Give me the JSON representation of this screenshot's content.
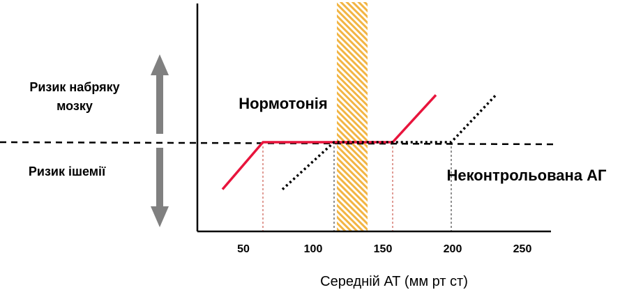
{
  "chart_data": {
    "type": "line",
    "xlabel": "Середній АТ (мм рт ст)",
    "xticks": [
      50,
      100,
      150,
      200,
      250
    ],
    "xlim": [
      18,
      270
    ],
    "autoregulation_zone": [
      118,
      140
    ],
    "series": [
      {
        "name": "Нормотонія",
        "color": "#e8143c",
        "style": "solid",
        "points": [
          [
            36,
            -0.55
          ],
          [
            65,
            0
          ],
          [
            118,
            0
          ],
          [
            140,
            0
          ],
          [
            158,
            0
          ],
          [
            189,
            0.55
          ]
        ]
      },
      {
        "name": "Неконтрольована АГ",
        "color": "#000000",
        "style": "dotted",
        "points": [
          [
            79,
            -0.55
          ],
          [
            116,
            0
          ],
          [
            200,
            0
          ],
          [
            232,
            0.55
          ]
        ]
      }
    ],
    "thresholds": [
      {
        "x": 65,
        "color": "#c0392b"
      },
      {
        "x": 116,
        "color": "#222222"
      },
      {
        "x": 158,
        "color": "#c0392b"
      },
      {
        "x": 200,
        "color": "#222222"
      }
    ],
    "annotations": {
      "edema_risk": [
        "Ризик набряку",
        "мозку"
      ],
      "ischemia_risk": "Ризик ішемії",
      "normotension": "Нормотонія",
      "uncontrolled_ah": "Неконтрольована АГ"
    },
    "colors": {
      "red_line": "#e8143c",
      "zone_fill": "#f2b544",
      "arrow": "#808080",
      "axis": "#000000"
    }
  }
}
